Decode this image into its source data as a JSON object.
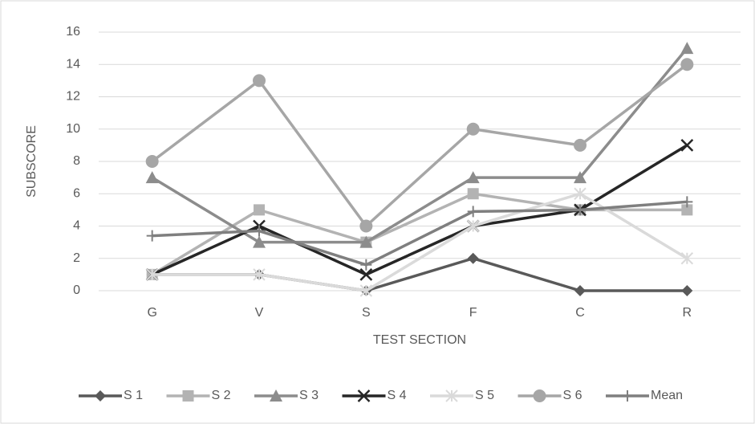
{
  "chart_data": {
    "type": "line",
    "x_label": "TEST SECTION",
    "y_label": "SUBSCORE",
    "categories": [
      "G",
      "V",
      "S",
      "F",
      "C",
      "R"
    ],
    "ylim": [
      0,
      16
    ],
    "yticks": [
      0,
      2,
      4,
      6,
      8,
      10,
      12,
      14,
      16
    ],
    "grid": true,
    "legend": "bottom",
    "series": [
      {
        "name": "S 1",
        "color": "#595959",
        "marker": "diamond",
        "values": [
          1,
          1,
          0,
          2,
          0,
          0
        ]
      },
      {
        "name": "S 2",
        "color": "#b3b3b3",
        "marker": "square",
        "values": [
          1,
          5,
          3,
          6,
          5,
          5
        ]
      },
      {
        "name": "S 3",
        "color": "#8c8c8c",
        "marker": "triangle",
        "values": [
          7,
          3,
          3,
          7,
          7,
          15
        ]
      },
      {
        "name": "S 4",
        "color": "#262626",
        "marker": "x",
        "values": [
          1,
          4,
          1,
          4,
          5,
          9
        ]
      },
      {
        "name": "S 5",
        "color": "#dadada",
        "marker": "star",
        "values": [
          1,
          1,
          0,
          4,
          6,
          2
        ]
      },
      {
        "name": "S 6",
        "color": "#a6a6a6",
        "marker": "circle",
        "values": [
          8,
          13,
          4,
          10,
          9,
          14
        ]
      },
      {
        "name": "Mean",
        "color": "#7f7f7f",
        "marker": "plus",
        "values": [
          3.4,
          3.7,
          1.6,
          4.9,
          5.0,
          5.5
        ]
      }
    ]
  }
}
